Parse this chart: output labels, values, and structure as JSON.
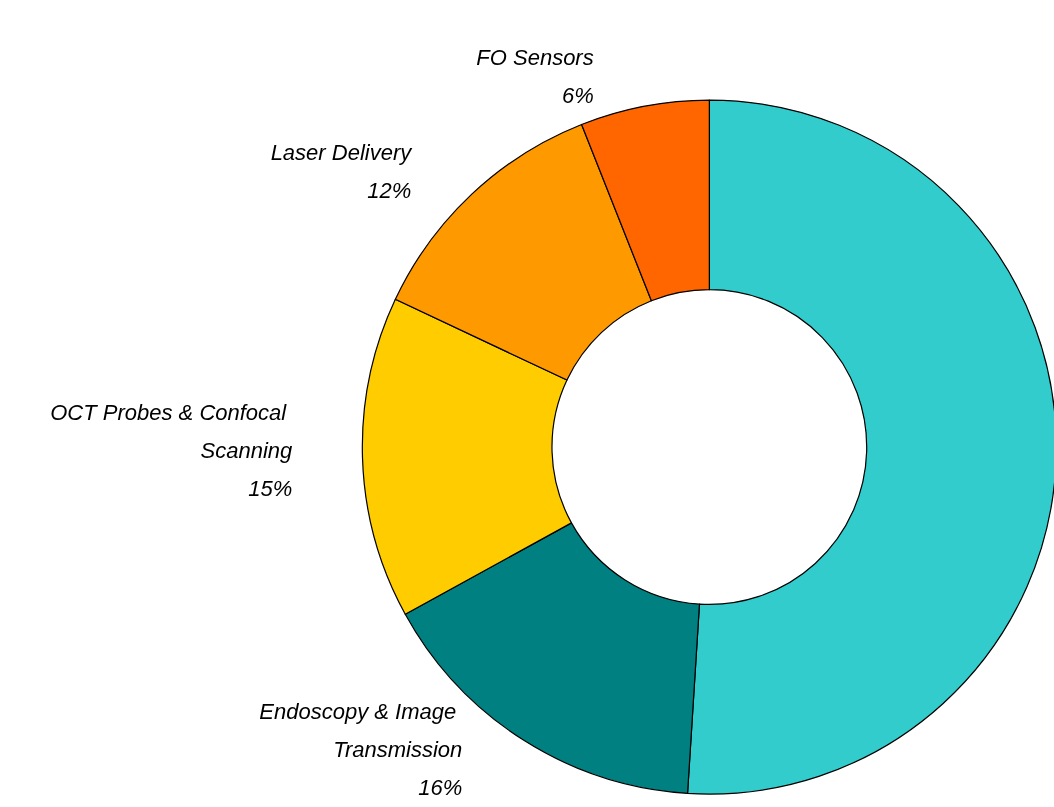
{
  "chart_data": {
    "type": "donut",
    "categories": [
      null,
      "Endoscopy & Image Transmission",
      "OCT Probes & Confocal Scanning",
      "Laser Delivery",
      "FO Sensors"
    ],
    "values": [
      51,
      16,
      15,
      12,
      6
    ],
    "colors": [
      "#33cccc",
      "#008080",
      "#ffcc00",
      "#ff9900",
      "#ff6600"
    ],
    "value_labels": [
      null,
      "16%",
      "15%",
      "12%",
      "6%"
    ]
  }
}
